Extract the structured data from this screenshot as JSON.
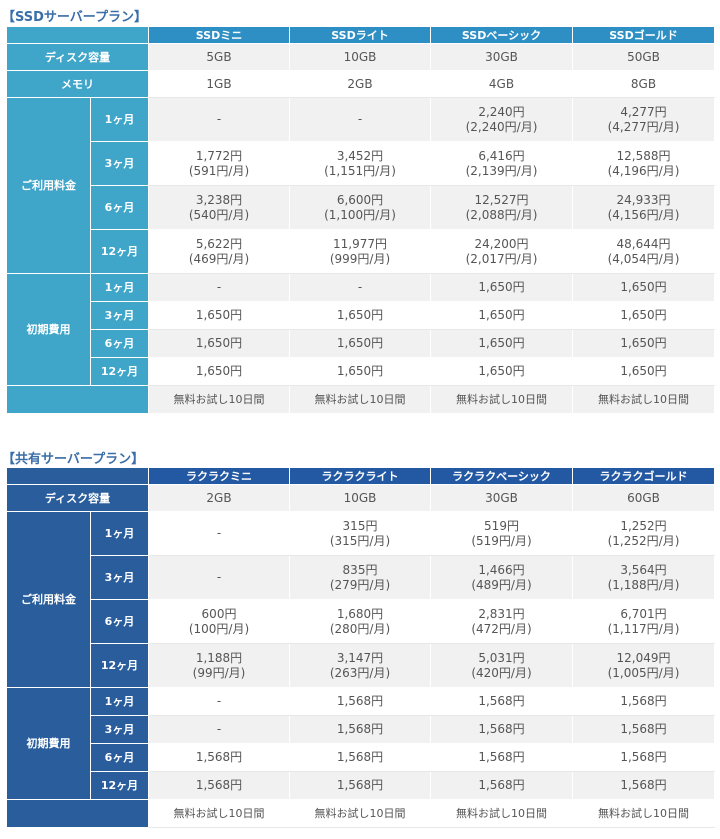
{
  "ssd": {
    "title": "【SSDサーバープラン】",
    "plans": [
      "SSDミニ",
      "SSDライト",
      "SSDベーシック",
      "SSDゴールド"
    ],
    "disk_label": "ディスク容量",
    "disk": [
      "5GB",
      "10GB",
      "30GB",
      "50GB"
    ],
    "memory_label": "メモリ",
    "memory": [
      "1GB",
      "2GB",
      "4GB",
      "8GB"
    ],
    "fee_label": "ご利用料金",
    "fees": [
      {
        "period": "1ヶ月",
        "cells": [
          [
            "-",
            ""
          ],
          [
            "-",
            ""
          ],
          [
            "2,240円",
            "(2,240円/月)"
          ],
          [
            "4,277円",
            "(4,277円/月)"
          ]
        ]
      },
      {
        "period": "3ヶ月",
        "cells": [
          [
            "1,772円",
            "(591円/月)"
          ],
          [
            "3,452円",
            "(1,151円/月)"
          ],
          [
            "6,416円",
            "(2,139円/月)"
          ],
          [
            "12,588円",
            "(4,196円/月)"
          ]
        ]
      },
      {
        "period": "6ヶ月",
        "cells": [
          [
            "3,238円",
            "(540円/月)"
          ],
          [
            "6,600円",
            "(1,100円/月)"
          ],
          [
            "12,527円",
            "(2,088円/月)"
          ],
          [
            "24,933円",
            "(4,156円/月)"
          ]
        ]
      },
      {
        "period": "12ヶ月",
        "cells": [
          [
            "5,622円",
            "(469円/月)"
          ],
          [
            "11,977円",
            "(999円/月)"
          ],
          [
            "24,200円",
            "(2,017円/月)"
          ],
          [
            "48,644円",
            "(4,054円/月)"
          ]
        ]
      }
    ],
    "setup_label": "初期費用",
    "setup": [
      {
        "period": "1ヶ月",
        "cells": [
          "-",
          "-",
          "1,650円",
          "1,650円"
        ]
      },
      {
        "period": "3ヶ月",
        "cells": [
          "1,650円",
          "1,650円",
          "1,650円",
          "1,650円"
        ]
      },
      {
        "period": "6ヶ月",
        "cells": [
          "1,650円",
          "1,650円",
          "1,650円",
          "1,650円"
        ]
      },
      {
        "period": "12ヶ月",
        "cells": [
          "1,650円",
          "1,650円",
          "1,650円",
          "1,650円"
        ]
      }
    ],
    "trial": [
      "無料お試し10日間",
      "無料お試し10日間",
      "無料お試し10日間",
      "無料お試し10日間"
    ]
  },
  "shared": {
    "title": "【共有サーバープラン】",
    "plans": [
      "ラクラクミニ",
      "ラクラクライト",
      "ラクラクベーシック",
      "ラクラクゴールド"
    ],
    "disk_label": "ディスク容量",
    "disk": [
      "2GB",
      "10GB",
      "30GB",
      "60GB"
    ],
    "fee_label": "ご利用料金",
    "fees": [
      {
        "period": "1ヶ月",
        "cells": [
          [
            "-",
            ""
          ],
          [
            "315円",
            "(315円/月)"
          ],
          [
            "519円",
            "(519円/月)"
          ],
          [
            "1,252円",
            "(1,252円/月)"
          ]
        ]
      },
      {
        "period": "3ヶ月",
        "cells": [
          [
            "-",
            ""
          ],
          [
            "835円",
            "(279円/月)"
          ],
          [
            "1,466円",
            "(489円/月)"
          ],
          [
            "3,564円",
            "(1,188円/月)"
          ]
        ]
      },
      {
        "period": "6ヶ月",
        "cells": [
          [
            "600円",
            "(100円/月)"
          ],
          [
            "1,680円",
            "(280円/月)"
          ],
          [
            "2,831円",
            "(472円/月)"
          ],
          [
            "6,701円",
            "(1,117円/月)"
          ]
        ]
      },
      {
        "period": "12ヶ月",
        "cells": [
          [
            "1,188円",
            "(99円/月)"
          ],
          [
            "3,147円",
            "(263円/月)"
          ],
          [
            "5,031円",
            "(420円/月)"
          ],
          [
            "12,049円",
            "(1,005円/月)"
          ]
        ]
      }
    ],
    "setup_label": "初期費用",
    "setup": [
      {
        "period": "1ヶ月",
        "cells": [
          "-",
          "1,568円",
          "1,568円",
          "1,568円"
        ]
      },
      {
        "period": "3ヶ月",
        "cells": [
          "-",
          "1,568円",
          "1,568円",
          "1,568円"
        ]
      },
      {
        "period": "6ヶ月",
        "cells": [
          "1,568円",
          "1,568円",
          "1,568円",
          "1,568円"
        ]
      },
      {
        "period": "12ヶ月",
        "cells": [
          "1,568円",
          "1,568円",
          "1,568円",
          "1,568円"
        ]
      }
    ],
    "trial": [
      "無料お試し10日間",
      "無料お試し10日間",
      "無料お試し10日間",
      "無料お試し10日間"
    ]
  }
}
